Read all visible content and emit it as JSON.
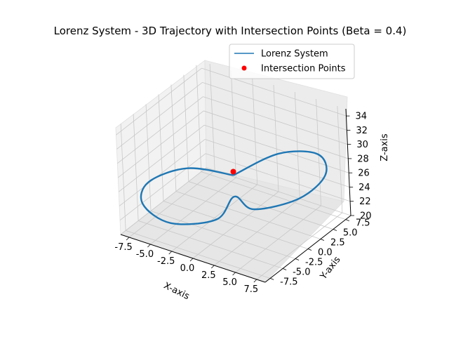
{
  "chart_data": {
    "type": "line",
    "projection": "3d",
    "title": "Lorenz System - 3D Trajectory with Intersection Points (Beta = 0.4)",
    "xlabel": "X-axis",
    "ylabel": "Y-axis",
    "zlabel": "Z-axis",
    "xlim": [
      -8.5,
      8.5
    ],
    "ylim": [
      -8.5,
      8.5
    ],
    "zlim": [
      20,
      35
    ],
    "xticks": [
      "-7.5",
      "-5.0",
      "-2.5",
      "0.0",
      "2.5",
      "5.0",
      "7.5"
    ],
    "xtick_values": [
      -7.5,
      -5.0,
      -2.5,
      0.0,
      2.5,
      5.0,
      7.5
    ],
    "yticks": [
      "-7.5",
      "-5.0",
      "-2.5",
      "0.0",
      "2.5",
      "5.0",
      "7.5"
    ],
    "ytick_values": [
      -7.5,
      -5.0,
      -2.5,
      0.0,
      2.5,
      5.0,
      7.5
    ],
    "zticks": [
      "20",
      "22",
      "24",
      "26",
      "28",
      "30",
      "32",
      "34"
    ],
    "ztick_values": [
      20,
      22,
      24,
      26,
      28,
      30,
      32,
      34
    ],
    "grid": true,
    "legend_position": "upper-right",
    "series": [
      {
        "name": "Lorenz System",
        "kind": "line",
        "color": "#1f77b4",
        "shape": "figure-eight closed orbit",
        "points": [
          {
            "x": 0,
            "y": 0,
            "z": 27
          },
          {
            "x": -4,
            "y": -3,
            "z": 29
          },
          {
            "x": -7.5,
            "y": -5.5,
            "z": 28
          },
          {
            "x": -8,
            "y": -6,
            "z": 25
          },
          {
            "x": -6,
            "y": -4,
            "z": 22
          },
          {
            "x": -2,
            "y": -1,
            "z": 21.5
          },
          {
            "x": 0,
            "y": 0,
            "z": 24
          },
          {
            "x": 2,
            "y": 1,
            "z": 21.5
          },
          {
            "x": 6,
            "y": 4,
            "z": 22
          },
          {
            "x": 8,
            "y": 6,
            "z": 25
          },
          {
            "x": 7.5,
            "y": 5.5,
            "z": 28
          },
          {
            "x": 4,
            "y": 3,
            "z": 29
          },
          {
            "x": 0,
            "y": 0,
            "z": 27
          }
        ]
      },
      {
        "name": "Intersection Points",
        "kind": "scatter",
        "color": "#ff0000",
        "points": [
          {
            "x": 0.0,
            "y": 0.0,
            "z": 27.5
          }
        ]
      }
    ]
  }
}
